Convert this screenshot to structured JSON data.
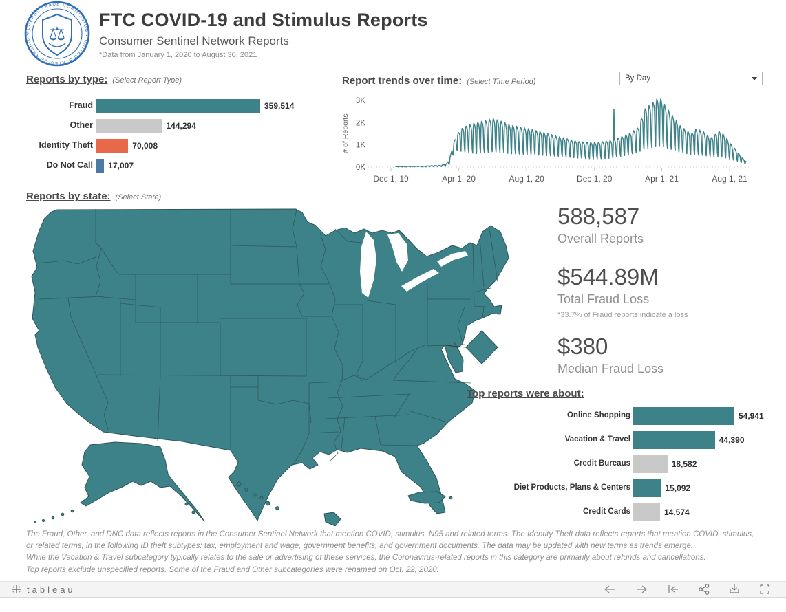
{
  "header": {
    "title": "FTC COVID-19 and Stimulus Reports",
    "subtitle": "Consumer Sentinel Network Reports",
    "note": "*Data from January 1, 2020 to August 30, 2021",
    "logo": {
      "ring_text": "FEDERAL TRADE COMMISSION • UNITED STATES OF AMERICA",
      "bottom_text": "MCMXV"
    }
  },
  "colors": {
    "teal": "#3C8288",
    "gray": "#C9C9C9",
    "orange": "#E8684A",
    "blue": "#4E79A7",
    "map_border": "#2F5559",
    "logo_blue": "#2F6FB5"
  },
  "sections": {
    "by_type": {
      "title": "Reports by type:",
      "hint": "(Select Report Type)"
    },
    "trend": {
      "title": "Report trends over time:",
      "hint": "(Select Time Period)",
      "dropdown_value": "By Day"
    },
    "by_state": {
      "title": "Reports by state:",
      "hint": "(Select State)"
    },
    "top_reports": {
      "title": "Top reports were about:"
    }
  },
  "stats": [
    {
      "value": "588,587",
      "label": "Overall Reports"
    },
    {
      "value": "$544.89M",
      "label": "Total Fraud Loss",
      "note": "*33.7% of Fraud reports indicate a loss"
    },
    {
      "value": "$380",
      "label": "Median Fraud Loss"
    }
  ],
  "footnotes": [
    "The Fraud, Other, and DNC data reflects reports in the Consumer Sentinel Network that mention COVID, stimulus, N95 and related terms.  The Identity Theft data reflects reports that mention COVID, stimulus,",
    "or related terms, in the following ID theft subtypes:  tax, employment and wage, government benefits, and government documents.  The data may be updated with new terms as trends emerge.",
    "While the Vacation & Travel subcategory typically relates to the sale or advertising of these services, the Coronavirus-related reports in this category are primarily about refunds and cancellations.",
    "Top reports exclude unspecified reports.  Some of the Fraud and Other subcategories were renamed on Oct. 22, 2020."
  ],
  "toolbar": {
    "logo_text": "tableau",
    "icons": [
      "undo",
      "redo",
      "reset",
      "share",
      "download",
      "fullscreen"
    ]
  },
  "chart_data": [
    {
      "type": "bar",
      "title": "Reports by type:",
      "orientation": "horizontal",
      "categories": [
        "Fraud",
        "Other",
        "Identity Theft",
        "Do Not Call"
      ],
      "values": [
        359514,
        144294,
        70008,
        17007
      ],
      "value_labels": [
        "359,514",
        "144,294",
        "70,008",
        "17,007"
      ],
      "bar_colors": [
        "teal",
        "gray",
        "orange",
        "blue"
      ]
    },
    {
      "type": "line",
      "title": "Report trends over time:",
      "series_name": "Reports per day",
      "ylabel": "# of Reports",
      "yticks": [
        {
          "label": "0K",
          "value": 0
        },
        {
          "label": "1K",
          "value": 1000
        },
        {
          "label": "2K",
          "value": 2000
        },
        {
          "label": "3K",
          "value": 3000
        }
      ],
      "ylim": [
        0,
        3200
      ],
      "xticks": [
        {
          "label": "Dec 1, 19",
          "day": 0
        },
        {
          "label": "Apr 1, 20",
          "day": 122
        },
        {
          "label": "Aug 1, 20",
          "day": 244
        },
        {
          "label": "Dec 1, 20",
          "day": 366
        },
        {
          "label": "Apr 1, 21",
          "day": 487
        },
        {
          "label": "Aug 1, 21",
          "day": 609
        }
      ],
      "x_range_days": [
        0,
        640
      ],
      "envelope_day_lo_hi": [
        [
          8,
          5,
          25
        ],
        [
          60,
          10,
          45
        ],
        [
          90,
          20,
          80
        ],
        [
          100,
          40,
          150
        ],
        [
          106,
          120,
          420
        ],
        [
          112,
          500,
          1050
        ],
        [
          119,
          700,
          1500
        ],
        [
          130,
          620,
          1800
        ],
        [
          152,
          520,
          2000
        ],
        [
          170,
          560,
          2100
        ],
        [
          183,
          600,
          2200
        ],
        [
          200,
          560,
          2050
        ],
        [
          214,
          520,
          1900
        ],
        [
          244,
          500,
          1750
        ],
        [
          275,
          460,
          1550
        ],
        [
          305,
          420,
          1350
        ],
        [
          336,
          360,
          1150
        ],
        [
          366,
          320,
          1100
        ],
        [
          396,
          350,
          1200
        ],
        [
          400,
          380,
          1250
        ],
        [
          401,
          2600,
          2600
        ],
        [
          402,
          380,
          1250
        ],
        [
          428,
          500,
          1500
        ],
        [
          445,
          600,
          1800
        ],
        [
          456,
          700,
          2600
        ],
        [
          470,
          760,
          2900
        ],
        [
          480,
          800,
          3100
        ],
        [
          487,
          800,
          3050
        ],
        [
          495,
          760,
          2700
        ],
        [
          510,
          660,
          2200
        ],
        [
          518,
          600,
          1900
        ],
        [
          540,
          500,
          1500
        ],
        [
          548,
          470,
          1700
        ],
        [
          560,
          460,
          1650
        ],
        [
          575,
          420,
          1300
        ],
        [
          590,
          400,
          1620
        ],
        [
          600,
          360,
          1450
        ],
        [
          609,
          310,
          1100
        ],
        [
          620,
          260,
          800
        ],
        [
          630,
          190,
          450
        ],
        [
          639,
          130,
          260
        ]
      ],
      "weekly_pattern": [
        0.06,
        0.88,
        1.0,
        0.96,
        0.9,
        0.78,
        0.22
      ],
      "note": "Daily report counts oscillate weekly between the low and high envelope; single-day spike of ~2.6K in early Jan 2021; peak ~3.1K in late Mar 2021."
    },
    {
      "type": "map",
      "title": "Reports by state:",
      "region": "United States (50 states, DC callout diamond, Alaska, Hawaii, Puerto Rico)",
      "description": "Choropleth of reports by state; every state is shaded the same teal in this view."
    },
    {
      "type": "bar",
      "title": "Top reports were about:",
      "orientation": "horizontal",
      "categories": [
        "Online Shopping",
        "Vacation & Travel",
        "Credit Bureaus",
        "Diet Products, Plans & Centers",
        "Credit Cards"
      ],
      "values": [
        54941,
        44390,
        18582,
        15092,
        14574
      ],
      "value_labels": [
        "54,941",
        "44,390",
        "18,582",
        "15,092",
        "14,574"
      ],
      "bar_colors": [
        "teal",
        "teal",
        "gray",
        "teal",
        "gray"
      ]
    }
  ]
}
